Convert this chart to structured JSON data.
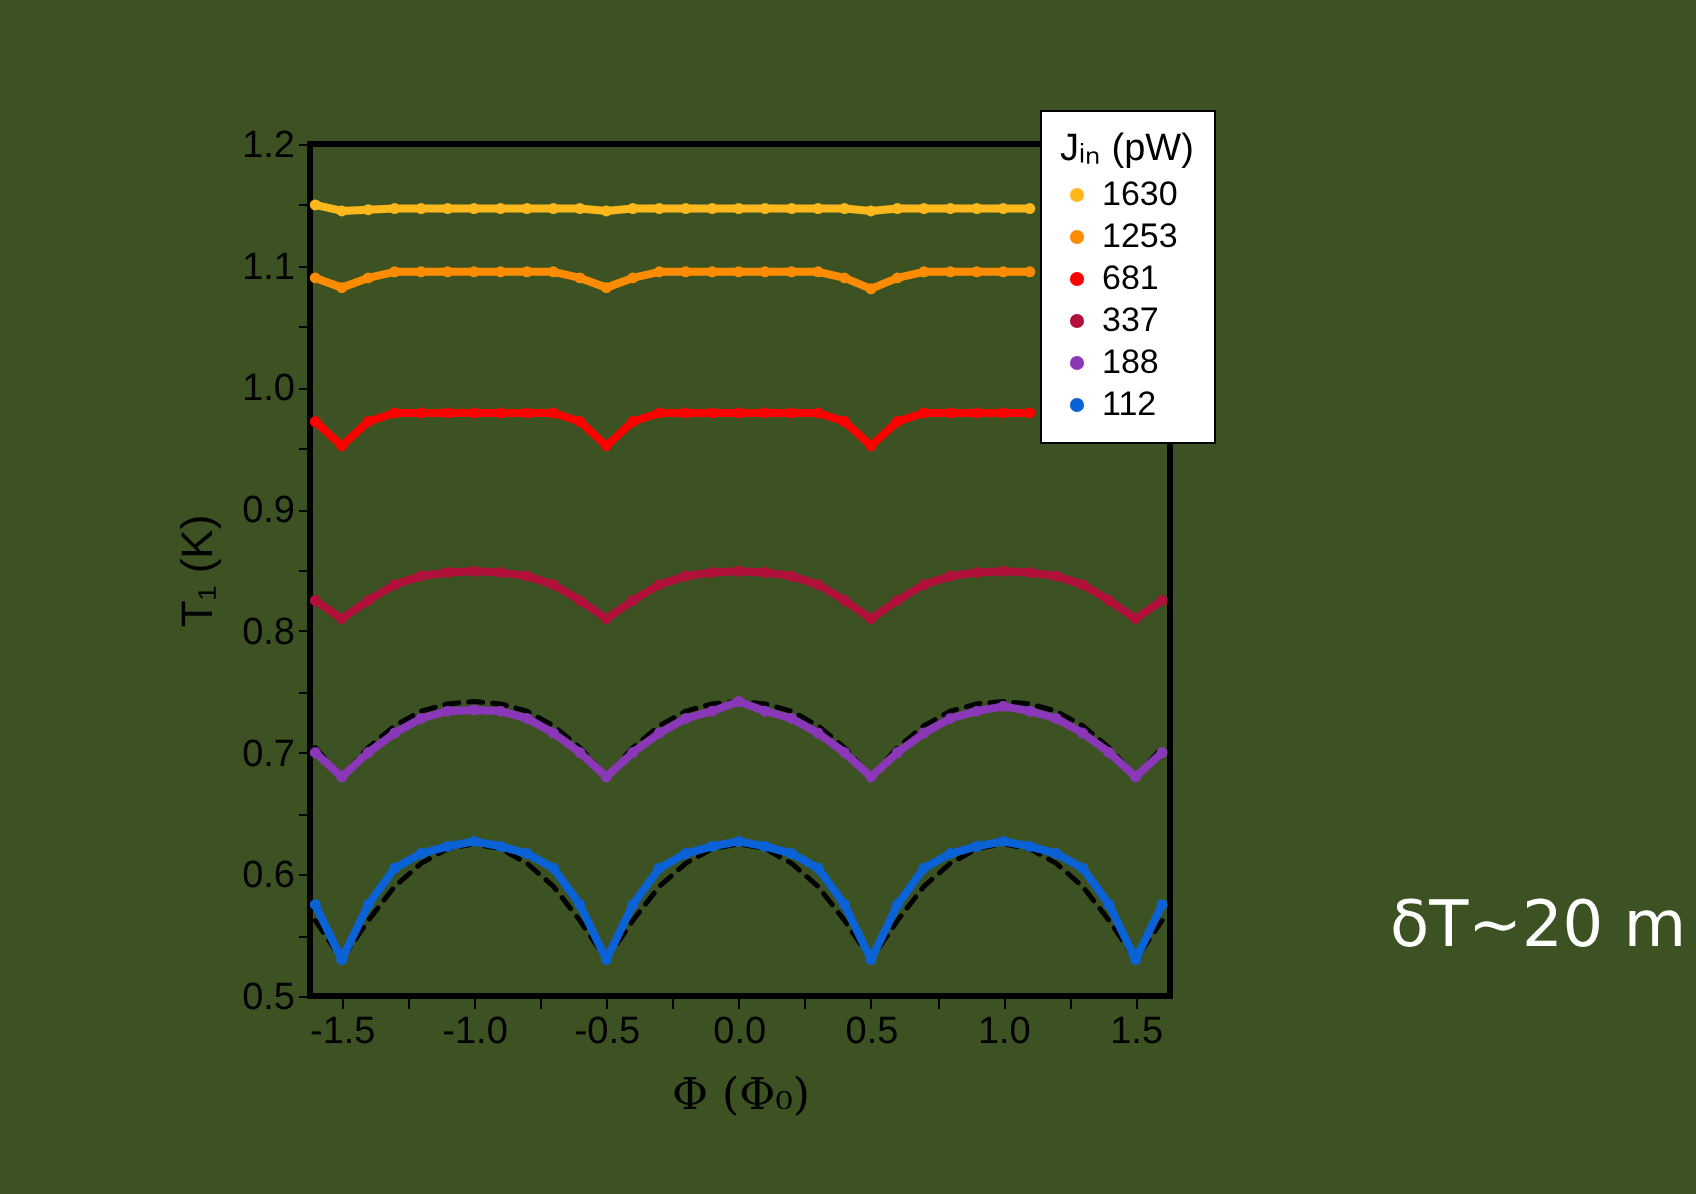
{
  "chart_data": {
    "type": "line",
    "xlabel": "Φ (Φ₀)",
    "ylabel": "T₁ (K)",
    "legend_title": "Jᵢₙ (pW)",
    "x": [
      -1.6,
      -1.5,
      -1.4,
      -1.3,
      -1.2,
      -1.1,
      -1.0,
      -0.9,
      -0.8,
      -0.7,
      -0.6,
      -0.5,
      -0.4,
      -0.3,
      -0.2,
      -0.1,
      0.0,
      0.1,
      0.2,
      0.3,
      0.4,
      0.5,
      0.6,
      0.7,
      0.8,
      0.9,
      1.0,
      1.1,
      1.2,
      1.3,
      1.4,
      1.5,
      1.6
    ],
    "series": [
      {
        "color": "#000000",
        "line_style": "dashed",
        "values": [
          0.704,
          0.68,
          0.704,
          0.722,
          0.734,
          0.74,
          0.742,
          0.74,
          0.734,
          0.722,
          0.704,
          0.68,
          0.704,
          0.722,
          0.734,
          0.74,
          0.742,
          0.74,
          0.734,
          0.722,
          0.704,
          0.68,
          0.704,
          0.722,
          0.734,
          0.74,
          0.742,
          0.74,
          0.734,
          0.722,
          0.704,
          0.68,
          0.704
        ]
      },
      {
        "color": "#000000",
        "line_style": "dashed",
        "values": [
          0.562,
          0.53,
          0.562,
          0.59,
          0.609,
          0.621,
          0.625,
          0.621,
          0.609,
          0.59,
          0.562,
          0.53,
          0.562,
          0.59,
          0.609,
          0.621,
          0.625,
          0.621,
          0.609,
          0.59,
          0.562,
          0.53,
          0.562,
          0.59,
          0.609,
          0.621,
          0.625,
          0.621,
          0.609,
          0.59,
          0.562,
          0.53,
          0.562
        ]
      },
      {
        "name": "1630",
        "color": "#ffb81c",
        "marker": "circle",
        "values": [
          1.15,
          1.145,
          1.146,
          1.147,
          1.147,
          1.147,
          1.147,
          1.147,
          1.147,
          1.147,
          1.147,
          1.145,
          1.147,
          1.147,
          1.147,
          1.147,
          1.147,
          1.147,
          1.147,
          1.147,
          1.147,
          1.145,
          1.147,
          1.147,
          1.147,
          1.147,
          1.147,
          1.147,
          null,
          null,
          null,
          null,
          null
        ]
      },
      {
        "name": "1253",
        "color": "#ff8c00",
        "marker": "circle",
        "values": [
          1.09,
          1.082,
          1.09,
          1.095,
          1.095,
          1.095,
          1.095,
          1.095,
          1.095,
          1.095,
          1.09,
          1.082,
          1.09,
          1.095,
          1.095,
          1.095,
          1.095,
          1.095,
          1.095,
          1.095,
          1.09,
          1.081,
          1.09,
          1.095,
          1.095,
          1.095,
          1.095,
          1.095,
          null,
          null,
          null,
          null,
          null
        ]
      },
      {
        "name": "681",
        "color": "#ff0000",
        "marker": "circle",
        "values": [
          0.972,
          0.952,
          0.972,
          0.979,
          0.979,
          0.979,
          0.979,
          0.979,
          0.979,
          0.979,
          0.972,
          0.952,
          0.972,
          0.979,
          0.979,
          0.979,
          0.979,
          0.979,
          0.979,
          0.979,
          0.972,
          0.952,
          0.972,
          0.979,
          0.979,
          0.979,
          0.979,
          0.979,
          null,
          null,
          null,
          null,
          null
        ]
      },
      {
        "name": "337",
        "color": "#b0103a",
        "marker": "circle",
        "values": [
          0.825,
          0.81,
          0.825,
          0.838,
          0.845,
          0.848,
          0.849,
          0.848,
          0.845,
          0.838,
          0.825,
          0.81,
          0.825,
          0.838,
          0.845,
          0.848,
          0.849,
          0.848,
          0.845,
          0.838,
          0.825,
          0.81,
          0.825,
          0.838,
          0.845,
          0.848,
          0.849,
          0.848,
          0.845,
          0.838,
          0.825,
          0.81,
          0.825
        ]
      },
      {
        "name": "188",
        "color": "#8b38b8",
        "marker": "circle",
        "values": [
          0.7,
          0.68,
          0.7,
          0.716,
          0.728,
          0.734,
          0.735,
          0.734,
          0.728,
          0.716,
          0.7,
          0.68,
          0.7,
          0.716,
          0.728,
          0.734,
          0.742,
          0.734,
          0.728,
          0.716,
          0.7,
          0.68,
          0.7,
          0.716,
          0.728,
          0.734,
          0.738,
          0.734,
          0.728,
          0.716,
          0.7,
          0.68,
          0.7
        ]
      },
      {
        "name": "112",
        "color": "#0a62d6",
        "marker": "circle",
        "values": [
          0.575,
          0.53,
          0.575,
          0.605,
          0.617,
          0.623,
          0.627,
          0.623,
          0.617,
          0.605,
          0.575,
          0.53,
          0.575,
          0.605,
          0.617,
          0.623,
          0.627,
          0.623,
          0.617,
          0.605,
          0.575,
          0.53,
          0.575,
          0.605,
          0.617,
          0.623,
          0.627,
          0.623,
          0.617,
          0.605,
          0.575,
          0.53,
          0.575
        ]
      }
    ],
    "xlim": [
      -1.62,
      1.63
    ],
    "ylim": [
      0.5,
      1.2
    ],
    "xticks": [
      -1.5,
      {
        "value": -1.25,
        "label": null
      },
      {
        "value": -1.0,
        "label": "-1.0"
      },
      {
        "value": -0.75,
        "label": null
      },
      -0.5,
      {
        "value": -0.25,
        "label": null
      },
      {
        "value": 0.0,
        "label": "0.0"
      },
      {
        "value": 0.25,
        "label": null
      },
      0.5,
      {
        "value": 0.75,
        "label": null
      },
      {
        "value": 1.0,
        "label": "1.0"
      },
      {
        "value": 1.25,
        "label": null
      },
      1.5
    ],
    "yticks": [
      0.5,
      {
        "value": 0.55,
        "label": null
      },
      0.6,
      {
        "value": 0.65,
        "label": null
      },
      0.7,
      {
        "value": 0.75,
        "label": null
      },
      0.8,
      {
        "value": 0.85,
        "label": null
      },
      0.9,
      {
        "value": 0.95,
        "label": null
      },
      {
        "value": 1.0,
        "label": "1.0"
      },
      {
        "value": 1.05,
        "label": null
      },
      1.1,
      {
        "value": 1.15,
        "label": null
      },
      1.2
    ],
    "grid": false,
    "legend": "top right",
    "annotations": [
      "δT~20 m"
    ]
  }
}
